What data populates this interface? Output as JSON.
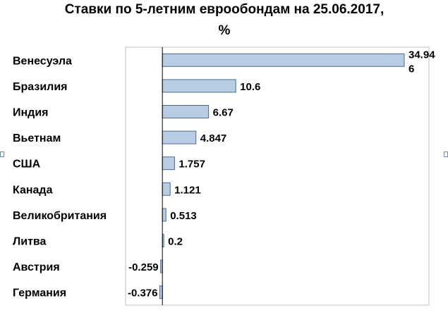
{
  "chart_data": {
    "type": "bar",
    "orientation": "horizontal",
    "title_line1": "Ставки по 5-летним еврообондам на 25.06.2017,",
    "title_line2": "%",
    "categories": [
      "Венесуэла",
      "Бразилия",
      "Индия",
      "Вьетнам",
      "США",
      "Канада",
      "Великобритания",
      "Литва",
      "Австрия",
      "Германия"
    ],
    "values": [
      34.946,
      10.6,
      6.67,
      4.847,
      1.757,
      1.121,
      0.513,
      0.2,
      -0.259,
      -0.376
    ],
    "data_labels": [
      [
        "34.94",
        "6"
      ],
      [
        "10.6"
      ],
      [
        "6.67"
      ],
      [
        "4.847"
      ],
      [
        "1.757"
      ],
      [
        "1.121"
      ],
      [
        "0.513"
      ],
      [
        "0.2"
      ],
      [
        "-0.259"
      ],
      [
        "-0.376"
      ]
    ],
    "xlim": [
      -0.376,
      34.946
    ],
    "grid": false,
    "legend": "none",
    "colors": {
      "bar_fill": "#b8cce4",
      "bar_stroke": "#4f6a8f",
      "frame": "#bfbfbf",
      "axis": "#000000",
      "text": "#000000"
    }
  }
}
